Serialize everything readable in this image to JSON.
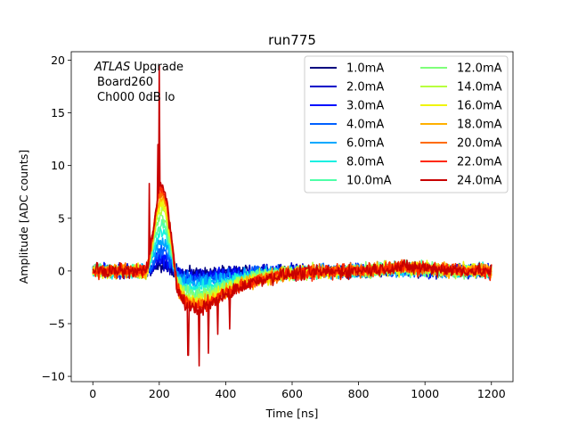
{
  "chart_data": {
    "type": "line",
    "title": "run775",
    "xlabel": "Time [ns]",
    "ylabel": "Amplitude [ADC counts]",
    "xlim": [
      -65,
      1265
    ],
    "ylim": [
      -10.5,
      20.8
    ],
    "xticks": [
      0,
      200,
      400,
      600,
      800,
      1000,
      1200
    ],
    "yticks": [
      -10,
      -5,
      0,
      5,
      10,
      15,
      20
    ],
    "grid": false,
    "legend_placement": "top-right",
    "legend_columns": 2,
    "annotations": {
      "line1_italic": "ATLAS",
      "line1_rest": " Upgrade",
      "line2": "Board260",
      "line3": "Ch000 0dB lo"
    },
    "series": [
      {
        "name": "1.0mA",
        "color": "#00007f",
        "peak": 0.4,
        "undershoot": 0.2,
        "noise": 0.6
      },
      {
        "name": "2.0mA",
        "color": "#0000c8",
        "peak": 0.8,
        "undershoot": 0.4,
        "noise": 0.7
      },
      {
        "name": "3.0mA",
        "color": "#0010ff",
        "peak": 1.3,
        "undershoot": 0.6,
        "noise": 0.7
      },
      {
        "name": "4.0mA",
        "color": "#0060ff",
        "peak": 1.8,
        "undershoot": 0.8,
        "noise": 0.7
      },
      {
        "name": "6.0mA",
        "color": "#00a8ff",
        "peak": 2.8,
        "undershoot": 1.2,
        "noise": 0.7
      },
      {
        "name": "8.0mA",
        "color": "#14f0e2",
        "peak": 3.7,
        "undershoot": 1.6,
        "noise": 0.7
      },
      {
        "name": "10.0mA",
        "color": "#4effa8",
        "peak": 4.5,
        "undershoot": 2.0,
        "noise": 0.7
      },
      {
        "name": "12.0mA",
        "color": "#7fff7a",
        "peak": 5.2,
        "undershoot": 2.3,
        "noise": 0.7
      },
      {
        "name": "14.0mA",
        "color": "#b8ff3e",
        "peak": 5.9,
        "undershoot": 2.6,
        "noise": 0.7
      },
      {
        "name": "16.0mA",
        "color": "#f0f50a",
        "peak": 6.5,
        "undershoot": 2.9,
        "noise": 0.7
      },
      {
        "name": "18.0mA",
        "color": "#ffb000",
        "peak": 7.0,
        "undershoot": 3.1,
        "noise": 0.7
      },
      {
        "name": "20.0mA",
        "color": "#ff6c00",
        "peak": 7.4,
        "undershoot": 3.3,
        "noise": 0.7
      },
      {
        "name": "22.0mA",
        "color": "#ff2800",
        "peak": 7.8,
        "undershoot": 3.4,
        "noise": 0.7
      },
      {
        "name": "24.0mA",
        "color": "#c80000",
        "peak": 8.0,
        "undershoot": 3.6,
        "noise": 0.7
      }
    ]
  }
}
